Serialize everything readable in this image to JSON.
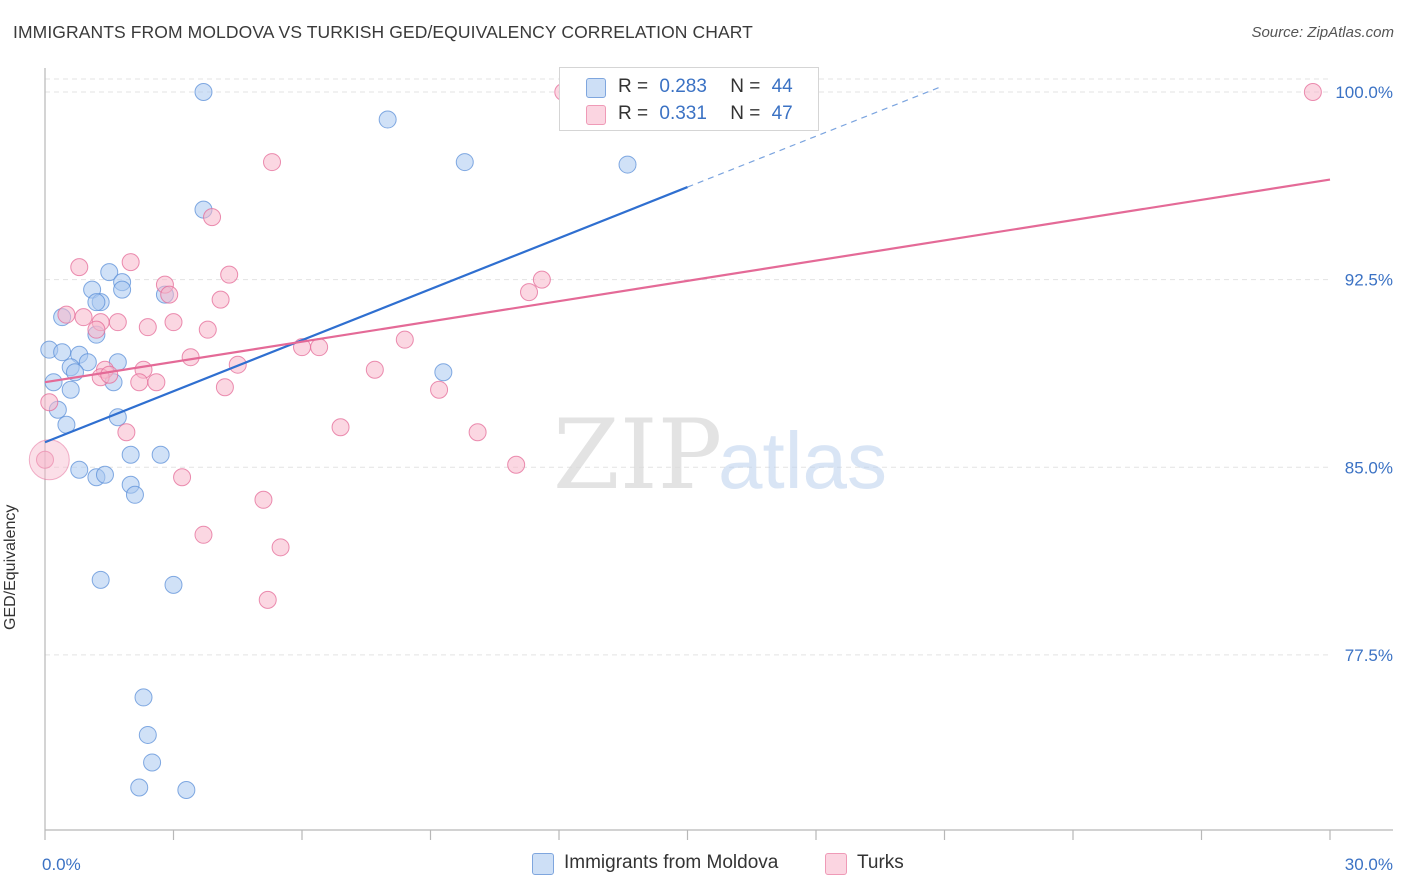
{
  "title": "IMMIGRANTS FROM MOLDOVA VS TURKISH GED/EQUIVALENCY CORRELATION CHART",
  "source": "Source: ZipAtlas.com",
  "watermark": {
    "zip": "ZIP",
    "atlas": "atlas"
  },
  "legend_top": [
    {
      "r_label": "R =",
      "r": "0.283",
      "n_label": "N =",
      "n": "44",
      "color": "#a9c8f0"
    },
    {
      "r_label": "R =",
      "r": "0.331",
      "n_label": "N =",
      "n": "47",
      "color": "#f7b7cb"
    }
  ],
  "chart_data": {
    "type": "scatter",
    "title": "IMMIGRANTS FROM MOLDOVA VS TURKISH GED/EQUIVALENCY CORRELATION CHART",
    "xlabel": "",
    "ylabel": "GED/Equivalency",
    "xlim": [
      0,
      30
    ],
    "ylim": [
      70.5,
      101.2
    ],
    "x_tick_labels": [
      {
        "value": 0,
        "label": "0.0%"
      },
      {
        "value": 30,
        "label": "30.0%"
      }
    ],
    "y_ticks": [
      {
        "value": 77.5,
        "label": "77.5%"
      },
      {
        "value": 85.0,
        "label": "85.0%"
      },
      {
        "value": 92.5,
        "label": "92.5%"
      },
      {
        "value": 100.0,
        "label": "100.0%"
      }
    ],
    "grid": true,
    "legend": "bottom-center",
    "series": [
      {
        "name": "Immigrants from Moldova",
        "color": "#5b8fd8",
        "fill": "#a9c8f0",
        "trend": {
          "x0": 0,
          "y0": 86.0,
          "x1": 15.0,
          "y1": 96.2,
          "dash_to_x": 20.9,
          "dash_to_y": 100.2
        },
        "points": [
          [
            3.7,
            100.0
          ],
          [
            8.0,
            98.9
          ],
          [
            9.8,
            97.2
          ],
          [
            13.6,
            97.1
          ],
          [
            3.7,
            95.3
          ],
          [
            1.5,
            92.8
          ],
          [
            1.8,
            92.4
          ],
          [
            1.1,
            92.1
          ],
          [
            1.8,
            92.1
          ],
          [
            1.3,
            91.6
          ],
          [
            2.8,
            91.9
          ],
          [
            0.4,
            91.0
          ],
          [
            1.2,
            91.6
          ],
          [
            1.2,
            90.3
          ],
          [
            0.1,
            89.7
          ],
          [
            0.4,
            89.6
          ],
          [
            0.8,
            89.5
          ],
          [
            1.0,
            89.2
          ],
          [
            0.6,
            89.0
          ],
          [
            0.7,
            88.8
          ],
          [
            1.7,
            89.2
          ],
          [
            1.6,
            88.4
          ],
          [
            0.2,
            88.4
          ],
          [
            0.6,
            88.1
          ],
          [
            9.3,
            88.8
          ],
          [
            0.3,
            87.3
          ],
          [
            1.7,
            87.0
          ],
          [
            0.5,
            86.7
          ],
          [
            2.0,
            85.5
          ],
          [
            2.7,
            85.5
          ],
          [
            0.8,
            84.9
          ],
          [
            1.2,
            84.6
          ],
          [
            1.4,
            84.7
          ],
          [
            2.0,
            84.3
          ],
          [
            2.1,
            83.9
          ],
          [
            1.3,
            80.5
          ],
          [
            3.0,
            80.3
          ],
          [
            2.3,
            75.8
          ],
          [
            2.4,
            74.3
          ],
          [
            2.5,
            73.2
          ],
          [
            2.2,
            72.2
          ],
          [
            3.3,
            72.1
          ]
        ]
      },
      {
        "name": "Turks",
        "color": "#e46a97",
        "fill": "#f7b7cb",
        "trend": {
          "x0": 0,
          "y0": 88.4,
          "x1": 30.0,
          "y1": 96.5
        },
        "points": [
          [
            12.1,
            100.0
          ],
          [
            29.6,
            100.0
          ],
          [
            5.3,
            97.2
          ],
          [
            3.9,
            95.0
          ],
          [
            2.0,
            93.2
          ],
          [
            0.8,
            93.0
          ],
          [
            4.3,
            92.7
          ],
          [
            11.6,
            92.5
          ],
          [
            2.8,
            92.3
          ],
          [
            11.3,
            92.0
          ],
          [
            2.9,
            91.9
          ],
          [
            4.1,
            91.7
          ],
          [
            0.5,
            91.1
          ],
          [
            0.9,
            91.0
          ],
          [
            1.3,
            90.8
          ],
          [
            1.7,
            90.8
          ],
          [
            2.4,
            90.6
          ],
          [
            3.0,
            90.8
          ],
          [
            3.8,
            90.5
          ],
          [
            1.2,
            90.5
          ],
          [
            8.4,
            90.1
          ],
          [
            6.4,
            89.8
          ],
          [
            6.0,
            89.8
          ],
          [
            3.4,
            89.4
          ],
          [
            4.5,
            89.1
          ],
          [
            2.3,
            88.9
          ],
          [
            1.4,
            88.9
          ],
          [
            7.7,
            88.9
          ],
          [
            1.3,
            88.6
          ],
          [
            1.5,
            88.7
          ],
          [
            2.2,
            88.4
          ],
          [
            2.6,
            88.4
          ],
          [
            4.2,
            88.2
          ],
          [
            9.2,
            88.1
          ],
          [
            0.1,
            87.6
          ],
          [
            6.9,
            86.6
          ],
          [
            10.1,
            86.4
          ],
          [
            1.9,
            86.4
          ],
          [
            0.0,
            85.3
          ],
          [
            11.0,
            85.1
          ],
          [
            3.2,
            84.6
          ],
          [
            5.1,
            83.7
          ],
          [
            3.7,
            82.3
          ],
          [
            5.5,
            81.8
          ],
          [
            5.2,
            79.7
          ]
        ]
      }
    ]
  }
}
